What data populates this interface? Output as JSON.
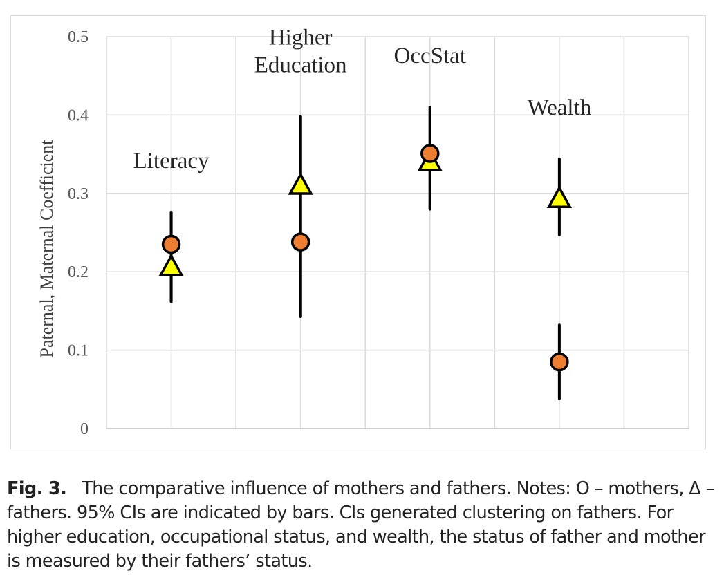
{
  "chart_data": {
    "type": "scatter",
    "title": "",
    "ylabel": "Paternal, Maternal Coefficient",
    "xlabel": "",
    "ylim": [
      0,
      0.5
    ],
    "yticks": [
      "0",
      "0.1",
      "0.2",
      "0.3",
      "0.4",
      "0.5"
    ],
    "ytick_values": [
      0,
      0.1,
      0.2,
      0.3,
      0.4,
      0.5
    ],
    "grid": true,
    "categories": [
      "Literacy",
      "Higher Education",
      "OccStat",
      "Wealth"
    ],
    "category_labels": [
      [
        "Literacy"
      ],
      [
        "Higher",
        "Education"
      ],
      [
        "OccStat"
      ],
      [
        "Wealth"
      ]
    ],
    "series": [
      {
        "name": "mothers",
        "marker": "circle",
        "color": "#ed7d31",
        "values": [
          0.235,
          0.238,
          0.351,
          0.085
        ],
        "ci_low": [
          0.162,
          0.143,
          0.28,
          0.038
        ],
        "ci_high": [
          0.276,
          0.398,
          0.41,
          0.132
        ]
      },
      {
        "name": "fathers",
        "marker": "triangle",
        "color": "#ffff00",
        "values": [
          0.206,
          0.31,
          0.34,
          0.293
        ],
        "ci_low": [
          0.162,
          0.143,
          0.28,
          0.247
        ],
        "ci_high": [
          0.276,
          0.398,
          0.41,
          0.344
        ]
      }
    ]
  },
  "caption": {
    "label": "Fig. 3.",
    "text": "The comparative influence of mothers and fathers. Notes: O – mothers, Δ – fathers. 95% CIs are indicated by bars. CIs generated clustering on fathers. For higher education, occupational status, and wealth, the status of father and mother is measured by their fathers’ status."
  }
}
